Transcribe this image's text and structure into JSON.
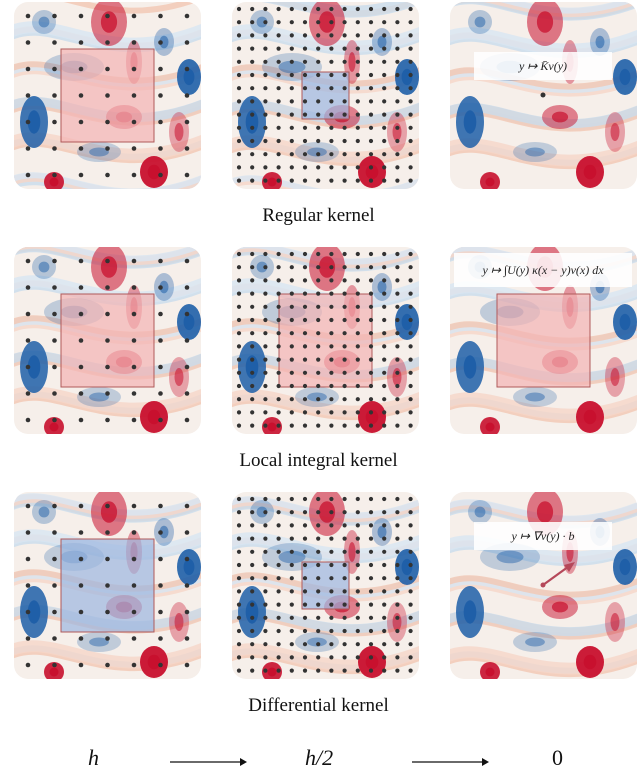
{
  "rows": [
    {
      "caption": "Regular kernel",
      "panels": [
        {
          "grid": "coarse",
          "box": "large-red"
        },
        {
          "grid": "fine",
          "box": "small-blue"
        },
        {
          "grid": "point",
          "formula": "y ↦ K̄v(y)"
        }
      ]
    },
    {
      "caption": "Local integral kernel",
      "panels": [
        {
          "grid": "coarse",
          "box": "large-red"
        },
        {
          "grid": "fine",
          "box": "large-red"
        },
        {
          "grid": "none",
          "box": "large-red",
          "formula": "y ↦ ∫U(y) κ(x − y)v(x) dx"
        }
      ]
    },
    {
      "caption": "Differential kernel",
      "panels": [
        {
          "grid": "coarse",
          "box": "large-blue"
        },
        {
          "grid": "fine",
          "box": "small-blue"
        },
        {
          "grid": "arrow",
          "formula": "y ↦ ∇v(y) · b"
        }
      ]
    }
  ],
  "axis": {
    "labels": [
      "h",
      "h/2",
      "0"
    ]
  },
  "colors": {
    "red": "#c8102e",
    "blue": "#1f5fa8",
    "dot": "#333333",
    "box_red_fill": "#f4b4b4",
    "box_blue_fill": "#9db6e0",
    "box_stroke": "#b05a5a"
  }
}
